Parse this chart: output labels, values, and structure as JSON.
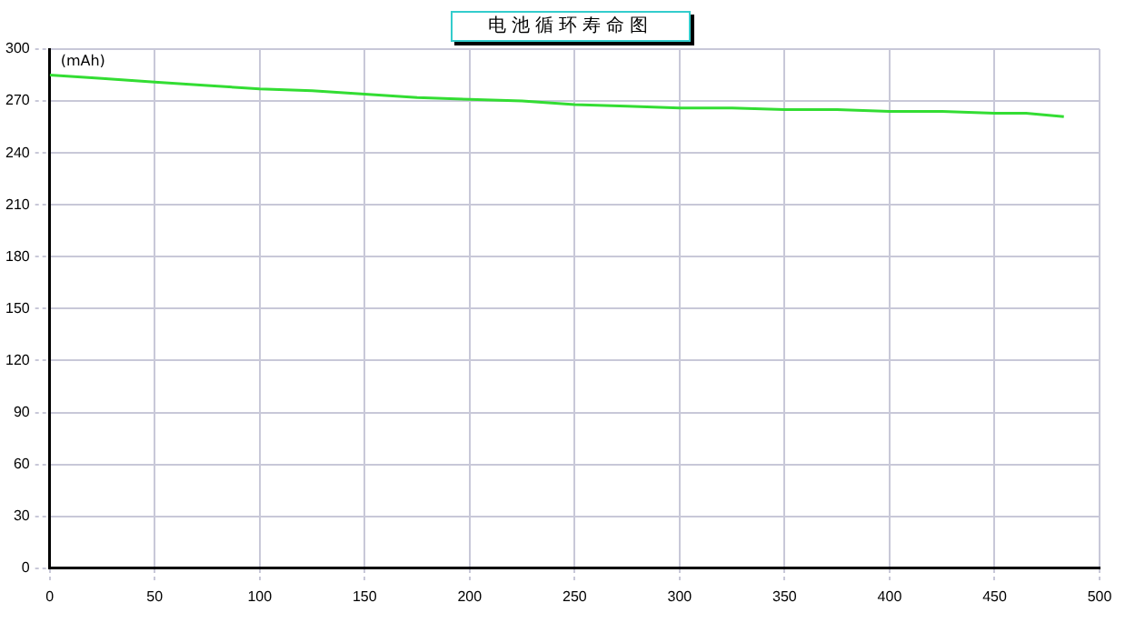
{
  "chart_data": {
    "type": "line",
    "title": "电池循环寿命图",
    "ylabel": "(mAh)",
    "x": [
      0,
      25,
      50,
      75,
      100,
      125,
      150,
      175,
      200,
      225,
      250,
      275,
      300,
      325,
      350,
      375,
      400,
      425,
      450,
      465,
      483
    ],
    "series": [
      {
        "color": "#33dd33",
        "values": [
          285,
          283,
          281,
          279,
          277,
          276,
          274,
          272,
          271,
          270,
          268,
          267,
          266,
          266,
          265,
          265,
          264,
          264,
          263,
          263,
          261
        ]
      }
    ],
    "xlim": [
      0,
      500
    ],
    "xticks": [
      0,
      50,
      100,
      150,
      200,
      250,
      300,
      350,
      400,
      450,
      500
    ],
    "ylim": [
      0,
      300
    ],
    "yticks": [
      0,
      30,
      60,
      90,
      120,
      150,
      180,
      210,
      240,
      270,
      300
    ],
    "grid": true,
    "legend": false,
    "marker": "none",
    "line_style": "solid"
  }
}
